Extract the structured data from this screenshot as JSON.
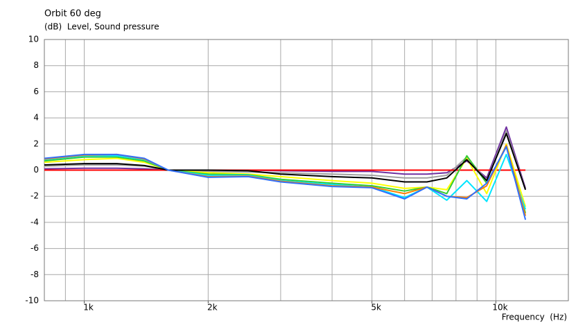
{
  "chart_data": {
    "type": "line",
    "title": "Orbit 60 deg",
    "subtitle": "(dB)  Level, Sound pressure",
    "x_label": "Frequency  (Hz)",
    "log_x": true,
    "grid": true,
    "xlim": [
      800,
      15000
    ],
    "xticks": [
      {
        "value": 1000,
        "label": "1k"
      },
      {
        "value": 2000,
        "label": "2k"
      },
      {
        "value": 5000,
        "label": "5k"
      },
      {
        "value": 10000,
        "label": "10k"
      }
    ],
    "xgrid": [
      900,
      1000,
      2000,
      3000,
      4000,
      5000,
      6000,
      7000,
      8000,
      9000,
      10000
    ],
    "ylim": [
      -10,
      10
    ],
    "yticks": [
      -10,
      -8,
      -6,
      -4,
      -2,
      0,
      2,
      4,
      6,
      8,
      10
    ],
    "x": [
      800,
      1000,
      1200,
      1400,
      1600,
      2000,
      2500,
      3000,
      4000,
      5000,
      6000,
      6800,
      7600,
      8500,
      9500,
      10600,
      11800
    ],
    "series": [
      {
        "color": "#7030a0",
        "values": [
          0.1,
          0.15,
          0.15,
          0.1,
          0,
          0,
          0,
          -0.05,
          -0.1,
          -0.1,
          -0.3,
          -0.3,
          -0.2,
          0.7,
          -0.6,
          3.3,
          -1.4
        ]
      },
      {
        "color": "#a0a0a0",
        "values": [
          0.3,
          0.4,
          0.4,
          0.3,
          0,
          -0.1,
          -0.15,
          -0.2,
          -0.3,
          -0.4,
          -0.6,
          -0.6,
          -0.4,
          1.0,
          -0.8,
          3.0,
          -1.5
        ]
      },
      {
        "color": "#ff0000",
        "values": [
          0,
          0,
          0,
          0,
          0,
          0,
          0,
          0,
          0,
          0,
          0,
          0,
          0,
          0,
          0,
          0,
          0
        ]
      },
      {
        "color": "#ffff00",
        "values": [
          0.6,
          0.8,
          0.9,
          0.6,
          0,
          -0.2,
          -0.3,
          -0.5,
          -0.8,
          -1.0,
          -1.4,
          -1.3,
          -1.5,
          0.9,
          -1.8,
          2.0,
          -2.8
        ]
      },
      {
        "color": "#33cc33",
        "values": [
          0.7,
          1.0,
          1.0,
          0.7,
          0,
          -0.3,
          -0.35,
          -0.7,
          -1.0,
          -1.2,
          -1.6,
          -1.3,
          -1.8,
          1.1,
          -1.0,
          1.8,
          -3.3
        ]
      },
      {
        "color": "#00e5ff",
        "values": [
          0.8,
          1.1,
          1.1,
          0.8,
          0,
          -0.4,
          -0.4,
          -0.8,
          -1.1,
          -1.3,
          -2.1,
          -1.3,
          -2.3,
          -0.8,
          -2.4,
          1.2,
          -3.0
        ]
      },
      {
        "color": "#ff8000",
        "values": [
          0.85,
          1.15,
          1.2,
          0.85,
          0,
          -0.5,
          -0.45,
          -0.85,
          -1.2,
          -1.3,
          -1.8,
          -1.3,
          -2.0,
          -2.1,
          -1.2,
          1.9,
          -3.5
        ]
      },
      {
        "color": "#000000",
        "values": [
          0.4,
          0.5,
          0.5,
          0.35,
          0,
          0,
          -0.05,
          -0.3,
          -0.5,
          -0.6,
          -0.9,
          -0.9,
          -0.6,
          0.8,
          -0.8,
          2.8,
          -1.5
        ]
      },
      {
        "color": "#3070ff",
        "values": [
          0.9,
          1.2,
          1.2,
          0.9,
          0,
          -0.55,
          -0.5,
          -0.9,
          -1.25,
          -1.35,
          -2.2,
          -1.3,
          -2.0,
          -2.2,
          -1.0,
          1.8,
          -3.8
        ]
      }
    ]
  }
}
